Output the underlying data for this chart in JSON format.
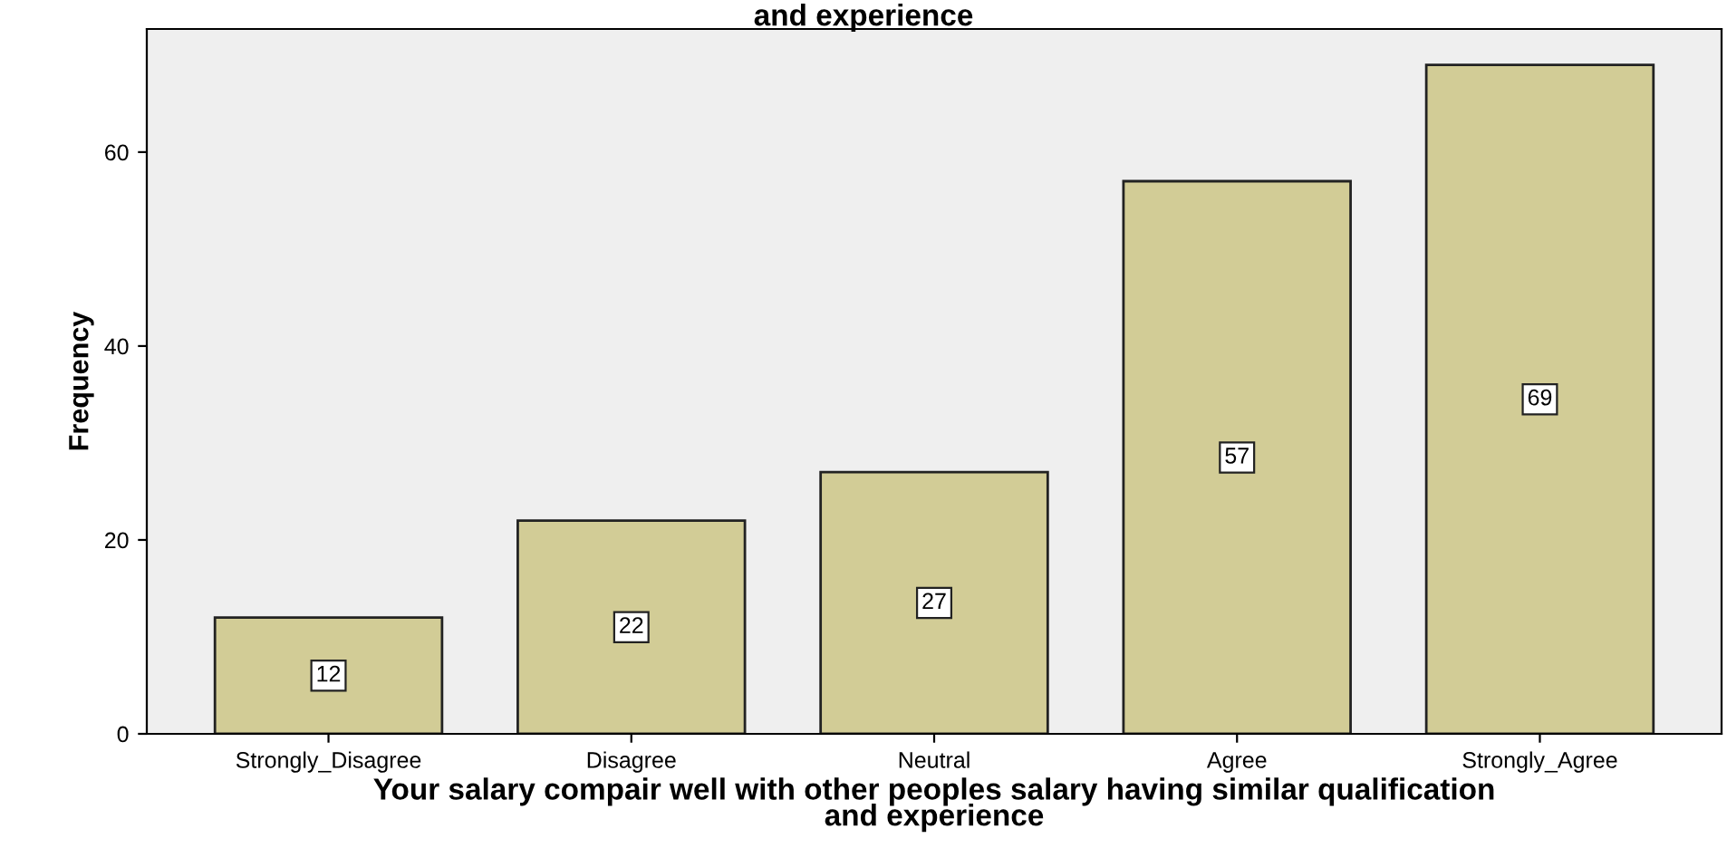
{
  "chart_data": {
    "type": "bar",
    "title": "and experience",
    "xlabel": "Your salary compair well with other peoples salary having similar qualification\nand experience",
    "ylabel": "Frequency",
    "categories": [
      "Strongly_Disagree",
      "Disagree",
      "Neutral",
      "Agree",
      "Strongly_Agree"
    ],
    "values": [
      12,
      22,
      27,
      57,
      69
    ],
    "color": "#d2cc96",
    "ylim": [
      0,
      72.7
    ],
    "yticks": [
      0,
      20,
      40,
      60
    ],
    "grid": false,
    "data_labels": true
  }
}
